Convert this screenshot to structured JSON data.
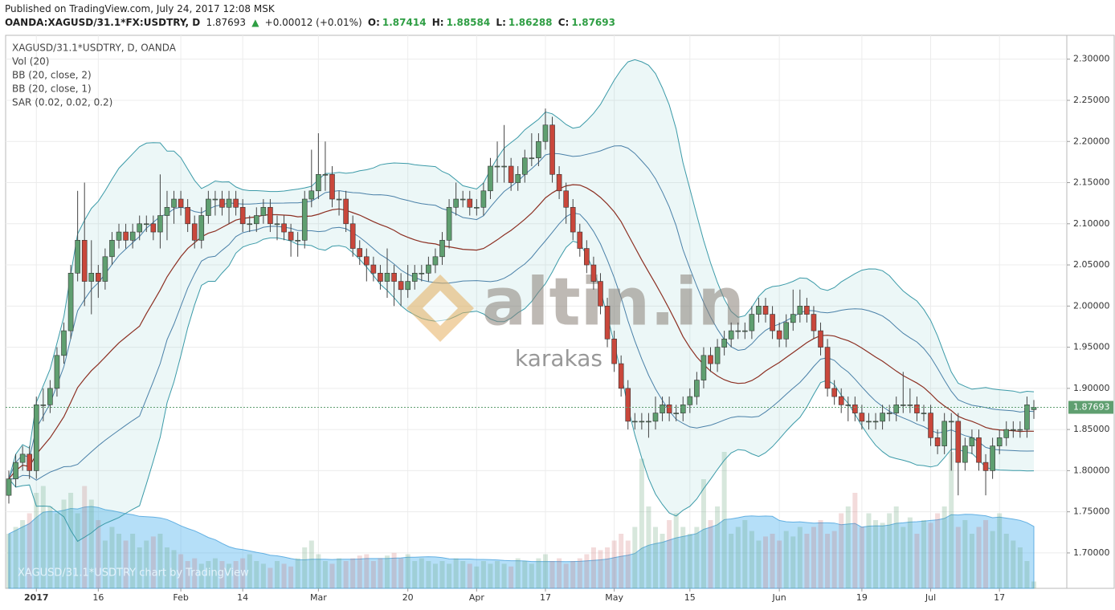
{
  "header": {
    "published": "Published on TradingView.com, July 24, 2017 12:08 MSK",
    "ticker": "OANDA:XAGUSD/31.1*FX:USDTRY, D",
    "change": "+0.00012 (+0.01%)",
    "ohlc_labels": [
      "O:",
      "H:",
      "L:",
      "C:"
    ]
  },
  "chart_data": {
    "type": "candlestick",
    "legend": [
      "XAGUSD/31.1*USDTRY, D, OANDA",
      "Vol (20)",
      "BB (20, close, 2)",
      "BB (20, close, 1)",
      "SAR (0.02, 0.02, 0.2)"
    ],
    "watermark": "altin.in",
    "watermark_sub": "karakas",
    "credit": "XAGUSD/31.1*USDTRY chart by TradingView",
    "categories": [
      null,
      null,
      null,
      null,
      "2017",
      null,
      null,
      null,
      null,
      null,
      null,
      null,
      null,
      "16",
      null,
      null,
      null,
      null,
      null,
      null,
      null,
      null,
      null,
      null,
      null,
      "Feb",
      null,
      null,
      null,
      null,
      null,
      null,
      null,
      null,
      "14",
      null,
      null,
      null,
      null,
      null,
      null,
      null,
      null,
      null,
      null,
      "Mar",
      null,
      null,
      null,
      null,
      null,
      null,
      null,
      null,
      null,
      null,
      null,
      null,
      "20",
      null,
      null,
      null,
      null,
      null,
      null,
      null,
      null,
      null,
      "Apr",
      null,
      null,
      null,
      null,
      null,
      null,
      null,
      null,
      null,
      "17",
      null,
      null,
      null,
      null,
      null,
      null,
      null,
      null,
      null,
      "May",
      null,
      null,
      null,
      null,
      null,
      null,
      null,
      null,
      null,
      null,
      "15",
      null,
      null,
      null,
      null,
      null,
      null,
      null,
      null,
      null,
      null,
      null,
      null,
      "Jun",
      null,
      null,
      null,
      null,
      null,
      null,
      null,
      null,
      null,
      null,
      null,
      "19",
      null,
      null,
      null,
      null,
      null,
      null,
      null,
      null,
      null,
      "Jul",
      null,
      null,
      null,
      null,
      null,
      null,
      null,
      null,
      null,
      "17",
      null,
      null,
      null,
      null,
      null
    ],
    "open": [
      1.77,
      1.79,
      1.81,
      1.82,
      1.8,
      1.88,
      1.88,
      1.9,
      1.94,
      1.97,
      2.04,
      2.08,
      2.03,
      2.04,
      2.03,
      2.06,
      2.08,
      2.09,
      2.08,
      2.09,
      2.1,
      2.1,
      2.09,
      2.11,
      2.12,
      2.13,
      2.12,
      2.1,
      2.08,
      2.11,
      2.13,
      2.13,
      2.12,
      2.13,
      2.12,
      2.1,
      2.1,
      2.11,
      2.12,
      2.1,
      2.1,
      2.09,
      2.08,
      2.08,
      2.13,
      2.14,
      2.16,
      2.16,
      2.13,
      2.13,
      2.1,
      2.07,
      2.06,
      2.05,
      2.04,
      2.03,
      2.04,
      2.03,
      2.02,
      2.03,
      2.04,
      2.04,
      2.05,
      2.06,
      2.08,
      2.12,
      2.13,
      2.13,
      2.12,
      2.12,
      2.14,
      2.17,
      2.17,
      2.17,
      2.15,
      2.16,
      2.18,
      2.18,
      2.2,
      2.22,
      2.16,
      2.14,
      2.12,
      2.09,
      2.07,
      2.05,
      2.03,
      2.0,
      1.96,
      1.93,
      1.9,
      1.86,
      1.86,
      1.86,
      1.86,
      1.87,
      1.88,
      1.87,
      1.87,
      1.88,
      1.89,
      1.91,
      1.94,
      1.93,
      1.95,
      1.96,
      1.97,
      1.97,
      1.97,
      1.99,
      2.0,
      1.99,
      1.97,
      1.96,
      1.98,
      1.99,
      2.0,
      1.99,
      1.97,
      1.95,
      1.9,
      1.89,
      1.88,
      1.88,
      1.87,
      1.86,
      1.86,
      1.86,
      1.87,
      1.87,
      1.88,
      1.88,
      1.88,
      1.87,
      1.87,
      1.84,
      1.83,
      1.86,
      1.86,
      1.81,
      1.83,
      1.84,
      1.81,
      1.8,
      1.83,
      1.84,
      1.85,
      1.85,
      1.85,
      1.87414
    ],
    "high": [
      1.8,
      1.82,
      1.83,
      1.83,
      1.89,
      1.9,
      1.91,
      1.95,
      1.98,
      2.05,
      2.14,
      2.15,
      2.08,
      2.05,
      2.07,
      2.09,
      2.1,
      2.1,
      2.1,
      2.11,
      2.11,
      2.11,
      2.16,
      2.14,
      2.14,
      2.14,
      2.13,
      2.11,
      2.12,
      2.14,
      2.14,
      2.14,
      2.14,
      2.14,
      2.13,
      2.11,
      2.12,
      2.13,
      2.13,
      2.11,
      2.11,
      2.1,
      2.09,
      2.14,
      2.19,
      2.21,
      2.2,
      2.17,
      2.14,
      2.14,
      2.11,
      2.08,
      2.07,
      2.06,
      2.05,
      2.07,
      2.05,
      2.04,
      2.05,
      2.05,
      2.05,
      2.06,
      2.07,
      2.09,
      2.13,
      2.15,
      2.14,
      2.14,
      2.13,
      2.15,
      2.18,
      2.2,
      2.22,
      2.18,
      2.17,
      2.19,
      2.21,
      2.21,
      2.24,
      2.23,
      2.17,
      2.15,
      2.13,
      2.1,
      2.08,
      2.06,
      2.04,
      2.01,
      1.97,
      1.94,
      1.91,
      1.87,
      1.87,
      1.87,
      1.89,
      1.89,
      1.89,
      1.88,
      1.89,
      1.9,
      1.92,
      1.95,
      1.95,
      1.96,
      1.97,
      1.98,
      1.98,
      1.98,
      2.0,
      2.01,
      2.01,
      2.0,
      1.98,
      1.99,
      2.02,
      2.02,
      2.01,
      2.0,
      1.98,
      1.96,
      1.91,
      1.9,
      1.89,
      1.89,
      1.88,
      1.87,
      1.87,
      1.88,
      1.88,
      1.89,
      1.92,
      1.9,
      1.89,
      1.88,
      1.88,
      1.85,
      1.87,
      1.87,
      1.87,
      1.84,
      1.85,
      1.85,
      1.82,
      1.84,
      1.85,
      1.86,
      1.86,
      1.86,
      1.89,
      1.88584
    ],
    "low": [
      1.76,
      1.78,
      1.8,
      1.79,
      1.79,
      1.86,
      1.87,
      1.89,
      1.93,
      1.96,
      2.03,
      2.0,
      1.99,
      2.01,
      2.02,
      2.05,
      2.07,
      2.07,
      2.07,
      2.08,
      2.09,
      2.08,
      2.07,
      2.08,
      2.1,
      2.11,
      2.09,
      2.07,
      2.07,
      2.1,
      2.11,
      2.11,
      2.1,
      2.11,
      2.09,
      2.09,
      2.09,
      2.1,
      2.09,
      2.08,
      2.08,
      2.06,
      2.06,
      2.07,
      2.12,
      2.13,
      2.14,
      2.12,
      2.11,
      2.09,
      2.06,
      2.05,
      2.03,
      2.03,
      2.02,
      2.01,
      2.0,
      2.0,
      2.01,
      2.02,
      2.03,
      2.03,
      2.04,
      2.05,
      2.07,
      2.11,
      2.12,
      2.11,
      2.11,
      2.11,
      2.13,
      2.15,
      2.15,
      2.14,
      2.14,
      2.15,
      2.17,
      2.17,
      2.19,
      2.15,
      2.13,
      2.1,
      2.08,
      2.06,
      2.04,
      2.02,
      1.99,
      1.95,
      1.92,
      1.89,
      1.85,
      1.85,
      1.85,
      1.84,
      1.85,
      1.86,
      1.86,
      1.86,
      1.86,
      1.87,
      1.88,
      1.9,
      1.92,
      1.92,
      1.94,
      1.95,
      1.96,
      1.96,
      1.96,
      1.98,
      1.98,
      1.96,
      1.95,
      1.95,
      1.97,
      1.98,
      1.98,
      1.96,
      1.94,
      1.89,
      1.88,
      1.87,
      1.86,
      1.86,
      1.85,
      1.85,
      1.85,
      1.85,
      1.86,
      1.86,
      1.87,
      1.87,
      1.86,
      1.86,
      1.83,
      1.82,
      1.82,
      1.8,
      1.77,
      1.8,
      1.82,
      1.8,
      1.77,
      1.79,
      1.82,
      1.83,
      1.84,
      1.84,
      1.84,
      1.86288
    ],
    "close": [
      1.79,
      1.81,
      1.82,
      1.8,
      1.88,
      1.88,
      1.9,
      1.94,
      1.97,
      2.04,
      2.08,
      2.03,
      2.04,
      2.03,
      2.06,
      2.08,
      2.09,
      2.08,
      2.09,
      2.1,
      2.1,
      2.09,
      2.11,
      2.12,
      2.13,
      2.12,
      2.1,
      2.08,
      2.11,
      2.13,
      2.13,
      2.12,
      2.13,
      2.12,
      2.1,
      2.1,
      2.11,
      2.12,
      2.1,
      2.1,
      2.09,
      2.08,
      2.08,
      2.13,
      2.14,
      2.16,
      2.16,
      2.13,
      2.13,
      2.1,
      2.07,
      2.06,
      2.05,
      2.04,
      2.03,
      2.04,
      2.03,
      2.02,
      2.03,
      2.04,
      2.04,
      2.05,
      2.06,
      2.08,
      2.12,
      2.13,
      2.13,
      2.12,
      2.12,
      2.14,
      2.17,
      2.17,
      2.17,
      2.15,
      2.16,
      2.18,
      2.18,
      2.2,
      2.22,
      2.16,
      2.14,
      2.12,
      2.09,
      2.07,
      2.05,
      2.03,
      2.0,
      1.96,
      1.93,
      1.9,
      1.86,
      1.86,
      1.86,
      1.86,
      1.87,
      1.88,
      1.87,
      1.87,
      1.88,
      1.89,
      1.91,
      1.94,
      1.93,
      1.95,
      1.96,
      1.97,
      1.97,
      1.97,
      1.99,
      2.0,
      1.99,
      1.97,
      1.96,
      1.98,
      1.99,
      2.0,
      1.99,
      1.97,
      1.95,
      1.9,
      1.89,
      1.88,
      1.88,
      1.87,
      1.86,
      1.86,
      1.86,
      1.87,
      1.87,
      1.88,
      1.88,
      1.88,
      1.87,
      1.87,
      1.84,
      1.83,
      1.86,
      1.86,
      1.81,
      1.83,
      1.84,
      1.81,
      1.8,
      1.83,
      1.84,
      1.85,
      1.85,
      1.85,
      1.88,
      1.87693
    ],
    "volume": [
      40,
      45,
      50,
      55,
      70,
      75,
      60,
      55,
      65,
      70,
      55,
      75,
      65,
      50,
      35,
      45,
      40,
      35,
      40,
      30,
      35,
      38,
      40,
      30,
      28,
      25,
      20,
      22,
      18,
      20,
      22,
      20,
      18,
      20,
      22,
      25,
      20,
      18,
      15,
      20,
      18,
      16,
      22,
      30,
      35,
      25,
      20,
      18,
      22,
      20,
      22,
      24,
      25,
      20,
      22,
      24,
      26,
      22,
      25,
      20,
      22,
      20,
      18,
      20,
      18,
      22,
      20,
      18,
      16,
      20,
      18,
      20,
      18,
      16,
      22,
      20,
      18,
      22,
      25,
      20,
      22,
      18,
      20,
      22,
      25,
      30,
      28,
      30,
      35,
      40,
      35,
      45,
      95,
      60,
      45,
      40,
      50,
      55,
      45,
      40,
      45,
      80,
      50,
      60,
      100,
      40,
      45,
      50,
      42,
      35,
      38,
      40,
      35,
      42,
      38,
      45,
      40,
      45,
      50,
      40,
      42,
      55,
      60,
      70,
      45,
      55,
      50,
      48,
      55,
      60,
      45,
      52,
      40,
      50,
      48,
      55,
      60,
      100,
      45,
      50,
      40,
      45,
      50,
      42,
      55,
      40,
      35,
      30,
      20,
      5
    ],
    "up_color": "#5f9f70",
    "down_color": "#c9473b",
    "ylim": [
      1.657,
      2.329
    ],
    "yticks": [
      {
        "value": 1.7,
        "label": "1.70000"
      },
      {
        "value": 1.75,
        "label": "1.75000"
      },
      {
        "value": 1.8,
        "label": "1.80000"
      },
      {
        "value": 1.85,
        "label": "1.85000"
      },
      {
        "value": 1.9,
        "label": "1.90000"
      },
      {
        "value": 1.95,
        "label": "1.95000"
      },
      {
        "value": 2.0,
        "label": "2.00000"
      },
      {
        "value": 2.05,
        "label": "2.05000"
      },
      {
        "value": 2.1,
        "label": "2.10000"
      },
      {
        "value": 2.15,
        "label": "2.15000"
      },
      {
        "value": 2.2,
        "label": "2.20000"
      },
      {
        "value": 2.25,
        "label": "2.25000"
      },
      {
        "value": 2.3,
        "label": "2.30000"
      }
    ],
    "grid": true
  }
}
